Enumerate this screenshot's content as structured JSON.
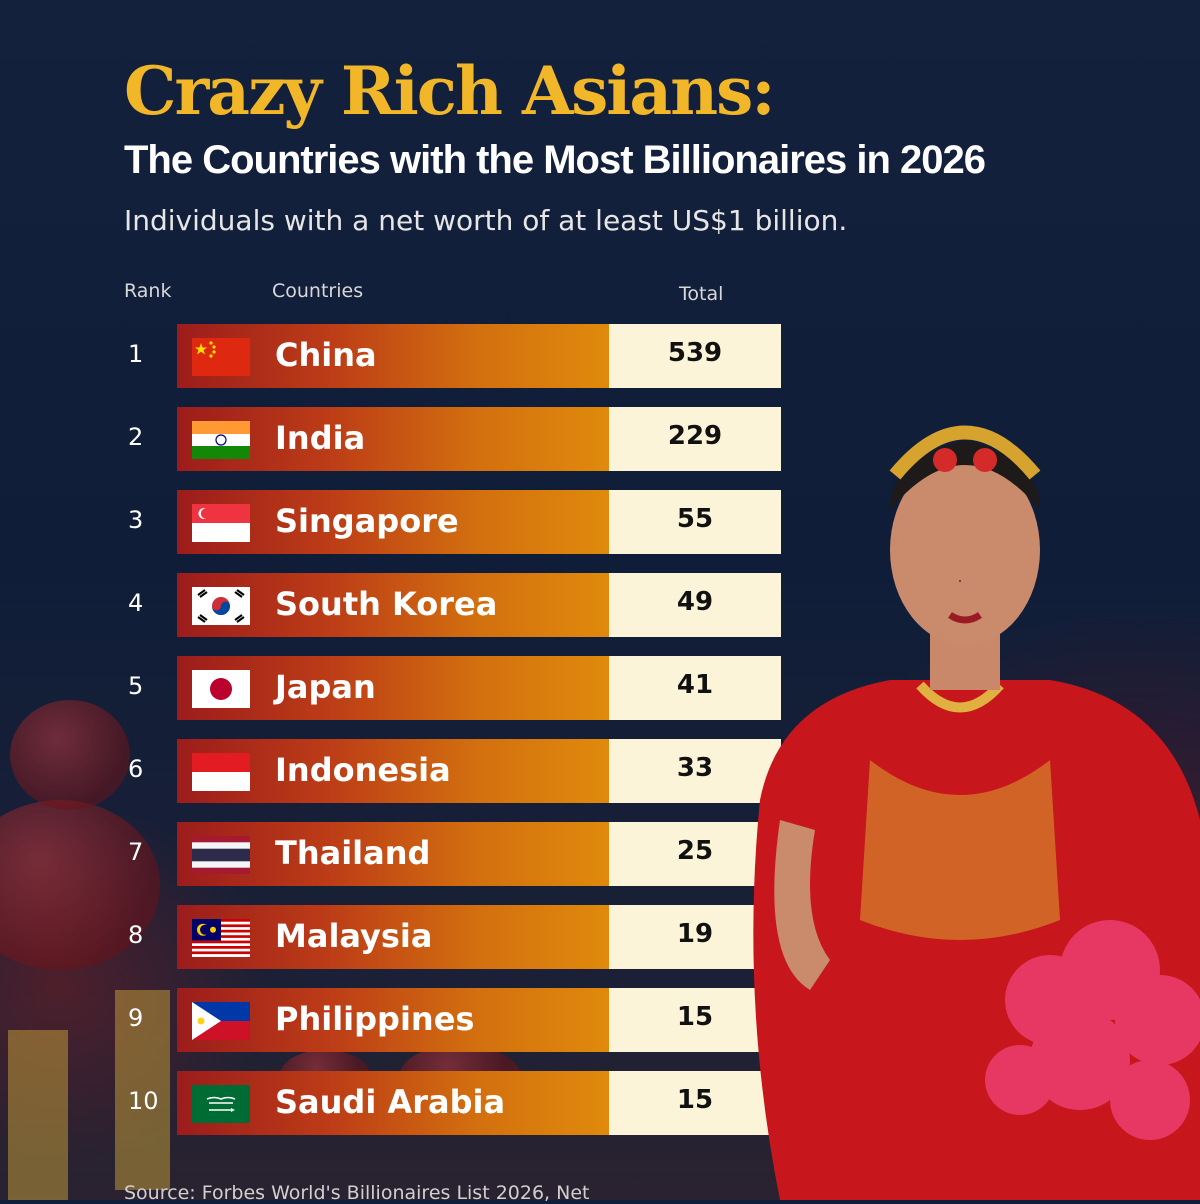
{
  "title": "Crazy Rich Asians:",
  "subtitle": "The Countries with the Most Billionaires in 2026",
  "description": "Individuals with a net worth of at least US$1 billion.",
  "headers": {
    "rank": "Rank",
    "country": "Countries",
    "total": "Total"
  },
  "source": "Source: Forbes World's Billionaires List 2026, Net",
  "colors": {
    "title": "#f2b728",
    "bar_start": "#9c1c1c",
    "bar_end": "#e08a0c",
    "total_bg": "#fbf4d8",
    "background": "#0f1e3a"
  },
  "chart_data": {
    "type": "table",
    "title": "Crazy Rich Asians:",
    "subtitle": "The Countries with the Most Billionaires in 2026",
    "columns": [
      "Rank",
      "Countries",
      "Total"
    ],
    "rows": [
      {
        "rank": "1",
        "country": "China",
        "flag": "china-flag",
        "total": 539
      },
      {
        "rank": "2",
        "country": "India",
        "flag": "india-flag",
        "total": 229
      },
      {
        "rank": "3",
        "country": "Singapore",
        "flag": "singapore-flag",
        "total": 55
      },
      {
        "rank": "4",
        "country": "South Korea",
        "flag": "south-korea-flag",
        "total": 49
      },
      {
        "rank": "5",
        "country": "Japan",
        "flag": "japan-flag",
        "total": 41
      },
      {
        "rank": "6",
        "country": "Indonesia",
        "flag": "indonesia-flag",
        "total": 33
      },
      {
        "rank": "7",
        "country": "Thailand",
        "flag": "thailand-flag",
        "total": 25
      },
      {
        "rank": "8",
        "country": "Malaysia",
        "flag": "malaysia-flag",
        "total": 19
      },
      {
        "rank": "9",
        "country": "Philippines",
        "flag": "philippines-flag",
        "total": 15
      },
      {
        "rank": "10",
        "country": "Saudi Arabia",
        "flag": "saudi-arabia-flag",
        "total": 15
      }
    ]
  }
}
